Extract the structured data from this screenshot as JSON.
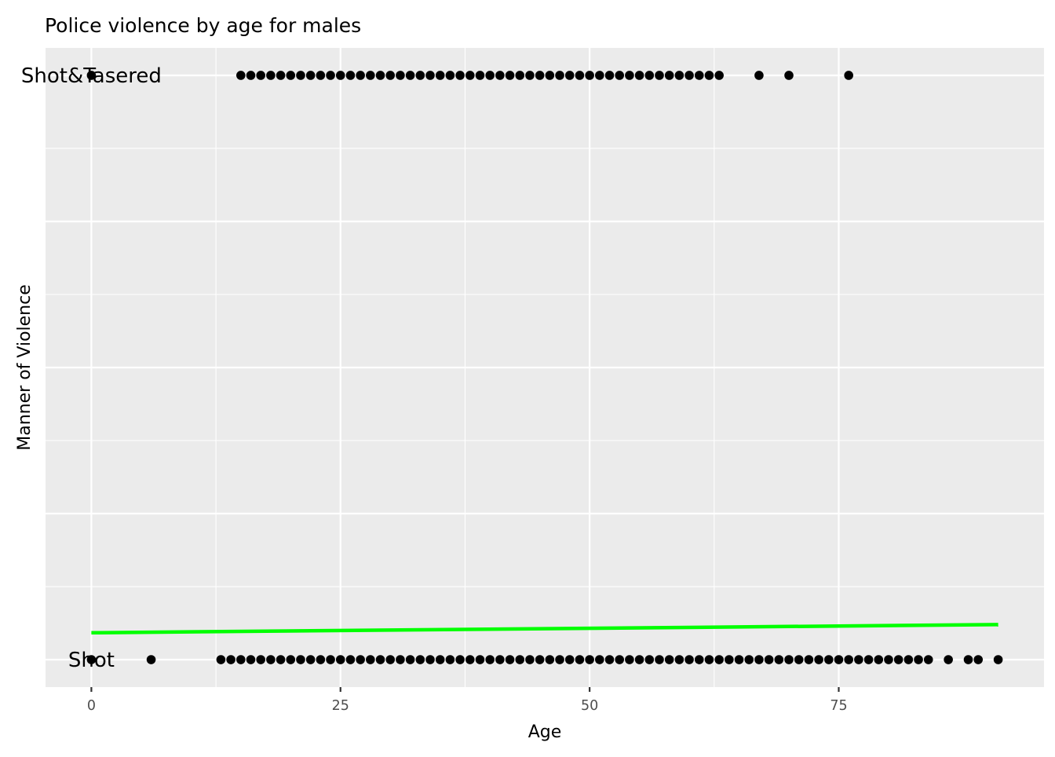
{
  "chart_data": {
    "type": "scatter",
    "title": "Police violence by age for males",
    "xlabel": "Age",
    "ylabel": "Manner of Violence",
    "xlim": [
      -4.6,
      95.6
    ],
    "ylim": [
      -0.047,
      1.047
    ],
    "x_ticks": [
      0,
      25,
      50,
      75
    ],
    "y_ticks_hidden": true,
    "grid": true,
    "legend": "none",
    "background": "#EBEBEB",
    "gridline_color": "#FFFFFF",
    "point_color": "#000000",
    "fit_line_color": "#00FF00",
    "category_labels": [
      {
        "text": "Shot&Tasered",
        "x": 0,
        "y": 1
      },
      {
        "text": "Shot",
        "x": 0,
        "y": 0
      }
    ],
    "series": [
      {
        "y": 1,
        "x": [
          0,
          15,
          16,
          17,
          18,
          19,
          20,
          21,
          22,
          23,
          24,
          25,
          26,
          27,
          28,
          29,
          30,
          31,
          32,
          33,
          34,
          35,
          36,
          37,
          38,
          39,
          40,
          41,
          42,
          43,
          44,
          45,
          46,
          47,
          48,
          49,
          50,
          51,
          52,
          53,
          54,
          55,
          56,
          57,
          58,
          59,
          60,
          61,
          62,
          63,
          67,
          70,
          76
        ]
      },
      {
        "y": 0,
        "x": [
          0,
          6,
          13,
          14,
          15,
          16,
          17,
          18,
          19,
          20,
          21,
          22,
          23,
          24,
          25,
          26,
          27,
          28,
          29,
          30,
          31,
          32,
          33,
          34,
          35,
          36,
          37,
          38,
          39,
          40,
          41,
          42,
          43,
          44,
          45,
          46,
          47,
          48,
          49,
          50,
          51,
          52,
          53,
          54,
          55,
          56,
          57,
          58,
          59,
          60,
          61,
          62,
          63,
          64,
          65,
          66,
          67,
          68,
          69,
          70,
          71,
          72,
          73,
          74,
          75,
          76,
          77,
          78,
          79,
          80,
          81,
          82,
          83,
          84,
          86,
          88,
          89,
          91
        ]
      }
    ],
    "fit_line": {
      "x": [
        0,
        91
      ],
      "y": [
        0.046,
        0.06
      ]
    }
  }
}
